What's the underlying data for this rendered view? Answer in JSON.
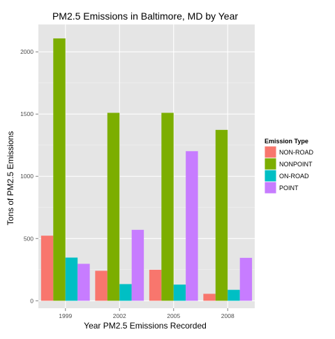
{
  "chart_data": {
    "type": "bar",
    "title": "PM2.5 Emissions in Baltimore, MD by Year",
    "xlabel": "Year PM2.5 Emissions Recorded",
    "ylabel": "Tons of PM2.5 Emissions",
    "categories": [
      "1999",
      "2002",
      "2005",
      "2008"
    ],
    "ylim": [
      -60,
      2220
    ],
    "yticks": [
      0,
      500,
      1000,
      1500,
      2000
    ],
    "grid": true,
    "legend": {
      "title": "Emission Type",
      "position": "right"
    },
    "series": [
      {
        "name": "NON-ROAD",
        "color": "#f8766d",
        "values": [
          523,
          241,
          249,
          56
        ]
      },
      {
        "name": "NONPOINT",
        "color": "#7cae00",
        "values": [
          2108,
          1510,
          1510,
          1373
        ]
      },
      {
        "name": "ON-ROAD",
        "color": "#00bfc4",
        "values": [
          347,
          134,
          130,
          88
        ]
      },
      {
        "name": "POINT",
        "color": "#c77cff",
        "values": [
          297,
          570,
          1202,
          345
        ]
      }
    ]
  },
  "colors": {
    "panel_background": "#e5e5e5",
    "grid_major": "#ffffff",
    "grid_minor": "#f2f2f2"
  }
}
